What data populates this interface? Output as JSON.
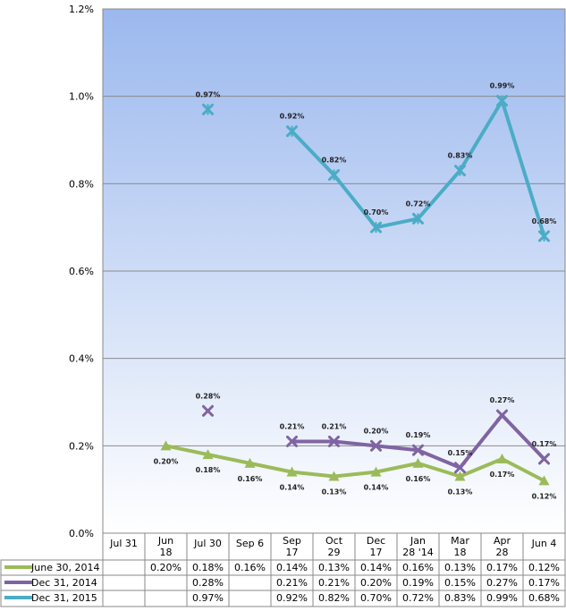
{
  "chart_data": {
    "type": "line",
    "title": "",
    "xlabel": "",
    "ylabel": "",
    "categories": [
      [
        "Jul 31"
      ],
      [
        "Jun",
        "18"
      ],
      [
        "Jul 30"
      ],
      [
        "Sep 6"
      ],
      [
        "Sep",
        "17"
      ],
      [
        "Oct",
        "29"
      ],
      [
        "Dec",
        "17"
      ],
      [
        "Jan",
        "28 '14"
      ],
      [
        "Mar",
        "18"
      ],
      [
        "Apr",
        "28"
      ],
      [
        "Jun 4"
      ]
    ],
    "ylim": [
      0,
      1.2
    ],
    "yticks": [
      "0.0%",
      "0.2%",
      "0.4%",
      "0.6%",
      "0.8%",
      "1.0%",
      "1.2%"
    ],
    "grid": true,
    "legend_position": "bottom-table",
    "series": [
      {
        "name": "June 30, 2014",
        "color": "#9bbb59",
        "marker": "triangle",
        "values": [
          null,
          0.2,
          0.18,
          0.16,
          0.14,
          0.13,
          0.14,
          0.16,
          0.13,
          0.17,
          0.12
        ],
        "labels": [
          "",
          "0.20%",
          "0.18%",
          "0.16%",
          "0.14%",
          "0.13%",
          "0.14%",
          "0.16%",
          "0.13%",
          "0.17%",
          "0.12%"
        ],
        "label_side": "below"
      },
      {
        "name": "Dec 31, 2014",
        "color": "#8064a2",
        "marker": "x",
        "values": [
          null,
          null,
          0.28,
          null,
          0.21,
          0.21,
          0.2,
          0.19,
          0.15,
          0.27,
          0.17
        ],
        "labels": [
          "",
          "",
          "0.28%",
          "",
          "0.21%",
          "0.21%",
          "0.20%",
          "0.19%",
          "0.15%",
          "0.27%",
          "0.17%"
        ],
        "label_side": "above"
      },
      {
        "name": "Dec 31, 2015",
        "color": "#4bacc6",
        "marker": "star",
        "values": [
          null,
          null,
          0.97,
          null,
          0.92,
          0.82,
          0.7,
          0.72,
          0.83,
          0.99,
          0.68
        ],
        "labels": [
          "",
          "",
          "0.97%",
          "",
          "0.92%",
          "0.82%",
          "0.70%",
          "0.72%",
          "0.83%",
          "0.99%",
          "0.68%"
        ],
        "label_side": "above"
      }
    ]
  }
}
